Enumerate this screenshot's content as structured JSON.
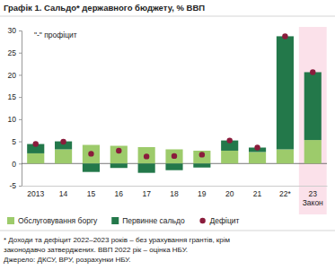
{
  "chart_data": {
    "type": "bar",
    "title": "Графік 1. Сальдо* державного бюджету, % ВВП",
    "annotation": "\"-\" профіцит",
    "categories": [
      "2013",
      "14",
      "15",
      "16",
      "17",
      "18",
      "19",
      "20",
      "21",
      "22*",
      "23\nЗакон"
    ],
    "stacked": true,
    "series": [
      {
        "name": "Обслуговування боргу",
        "type": "bar",
        "color": "#9dcb6b",
        "values": [
          2.3,
          3.2,
          4.2,
          4.0,
          3.7,
          3.2,
          2.9,
          2.9,
          2.6,
          3.2,
          5.3
        ]
      },
      {
        "name": "Первинне сальдо",
        "type": "bar",
        "color": "#23784a",
        "values": [
          2.1,
          1.8,
          -1.9,
          -1.0,
          -2.1,
          -1.5,
          -0.9,
          2.3,
          1.0,
          25.5,
          15.3
        ]
      },
      {
        "name": "Дефіцит",
        "type": "scatter",
        "marker": "circle",
        "color": "#8a1c3c",
        "values": [
          4.4,
          4.9,
          2.2,
          2.9,
          1.6,
          1.7,
          2.0,
          5.2,
          3.6,
          28.7,
          20.6
        ]
      }
    ],
    "ylim": [
      -5,
      30
    ],
    "yticks": [
      -5,
      0,
      5,
      10,
      15,
      20,
      25,
      30
    ],
    "grid": false,
    "legend": "bottom",
    "footnotes": [
      "* Доходи та дефіцит 2022–2023 років – без урахування грантів, крім",
      "законодавчо затверджених. ВВП 2022 рік – оцінка НБУ.",
      "Джерело: ДКСУ, ВРУ, розрахунки НБУ."
    ]
  }
}
